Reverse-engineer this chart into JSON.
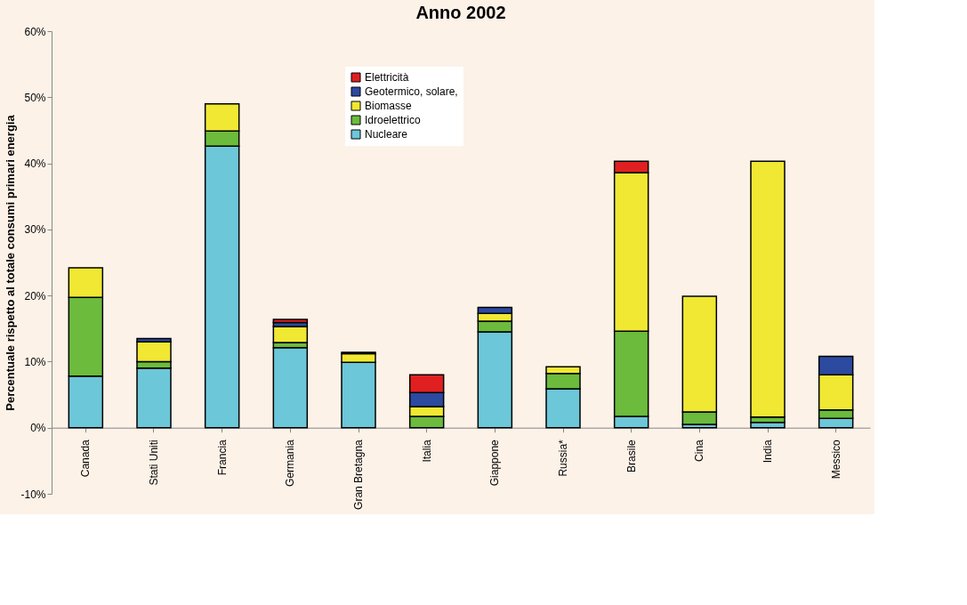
{
  "chart_data": {
    "type": "bar",
    "stacked": true,
    "title": "Anno 2002",
    "ylabel": "Percentuale rispetto al totale consumi primari energia",
    "categories": [
      "Canada",
      "Stati Uniti",
      "Francia",
      "Germania",
      "Gran Bretagna",
      "Italia",
      "Giappone",
      "Russia*",
      "Brasile",
      "Cina",
      "India",
      "Messico"
    ],
    "series": [
      {
        "name": "Nucleare",
        "color": "#6cc7d8",
        "values": [
          7.8,
          9.0,
          42.6,
          12.1,
          9.9,
          null,
          14.5,
          5.9,
          1.7,
          0.5,
          0.8,
          1.4
        ]
      },
      {
        "name": "Idroelettrico",
        "color": "#6cbb3c",
        "values": [
          11.9,
          1.0,
          2.3,
          0.8,
          null,
          1.7,
          1.6,
          2.3,
          12.9,
          1.9,
          0.8,
          1.3
        ]
      },
      {
        "name": "Biomasse",
        "color": "#f0e832",
        "values": [
          4.5,
          3.0,
          4.1,
          2.4,
          1.3,
          1.5,
          1.2,
          1.0,
          24.0,
          17.5,
          38.7,
          5.3
        ]
      },
      {
        "name": "Geotermico, solare,",
        "color": "#2b4aa0",
        "values": [
          null,
          0.5,
          null,
          0.6,
          0.2,
          2.1,
          0.9,
          null,
          null,
          null,
          null,
          2.8
        ]
      },
      {
        "name": "Elettricità",
        "color": "#e02020",
        "values": [
          null,
          null,
          null,
          0.5,
          null,
          2.7,
          null,
          null,
          1.7,
          null,
          null,
          null
        ]
      }
    ],
    "ylim": [
      -10,
      60
    ],
    "yticks": [
      {
        "value": -10,
        "label": "-10%"
      },
      {
        "value": 0,
        "label": "0%"
      },
      {
        "value": 10,
        "label": "10%"
      },
      {
        "value": 20,
        "label": "20%"
      },
      {
        "value": 30,
        "label": "30%"
      },
      {
        "value": 40,
        "label": "40%"
      },
      {
        "value": 50,
        "label": "50%"
      },
      {
        "value": 60,
        "label": "60%"
      }
    ],
    "legend": "top",
    "grid": false
  }
}
